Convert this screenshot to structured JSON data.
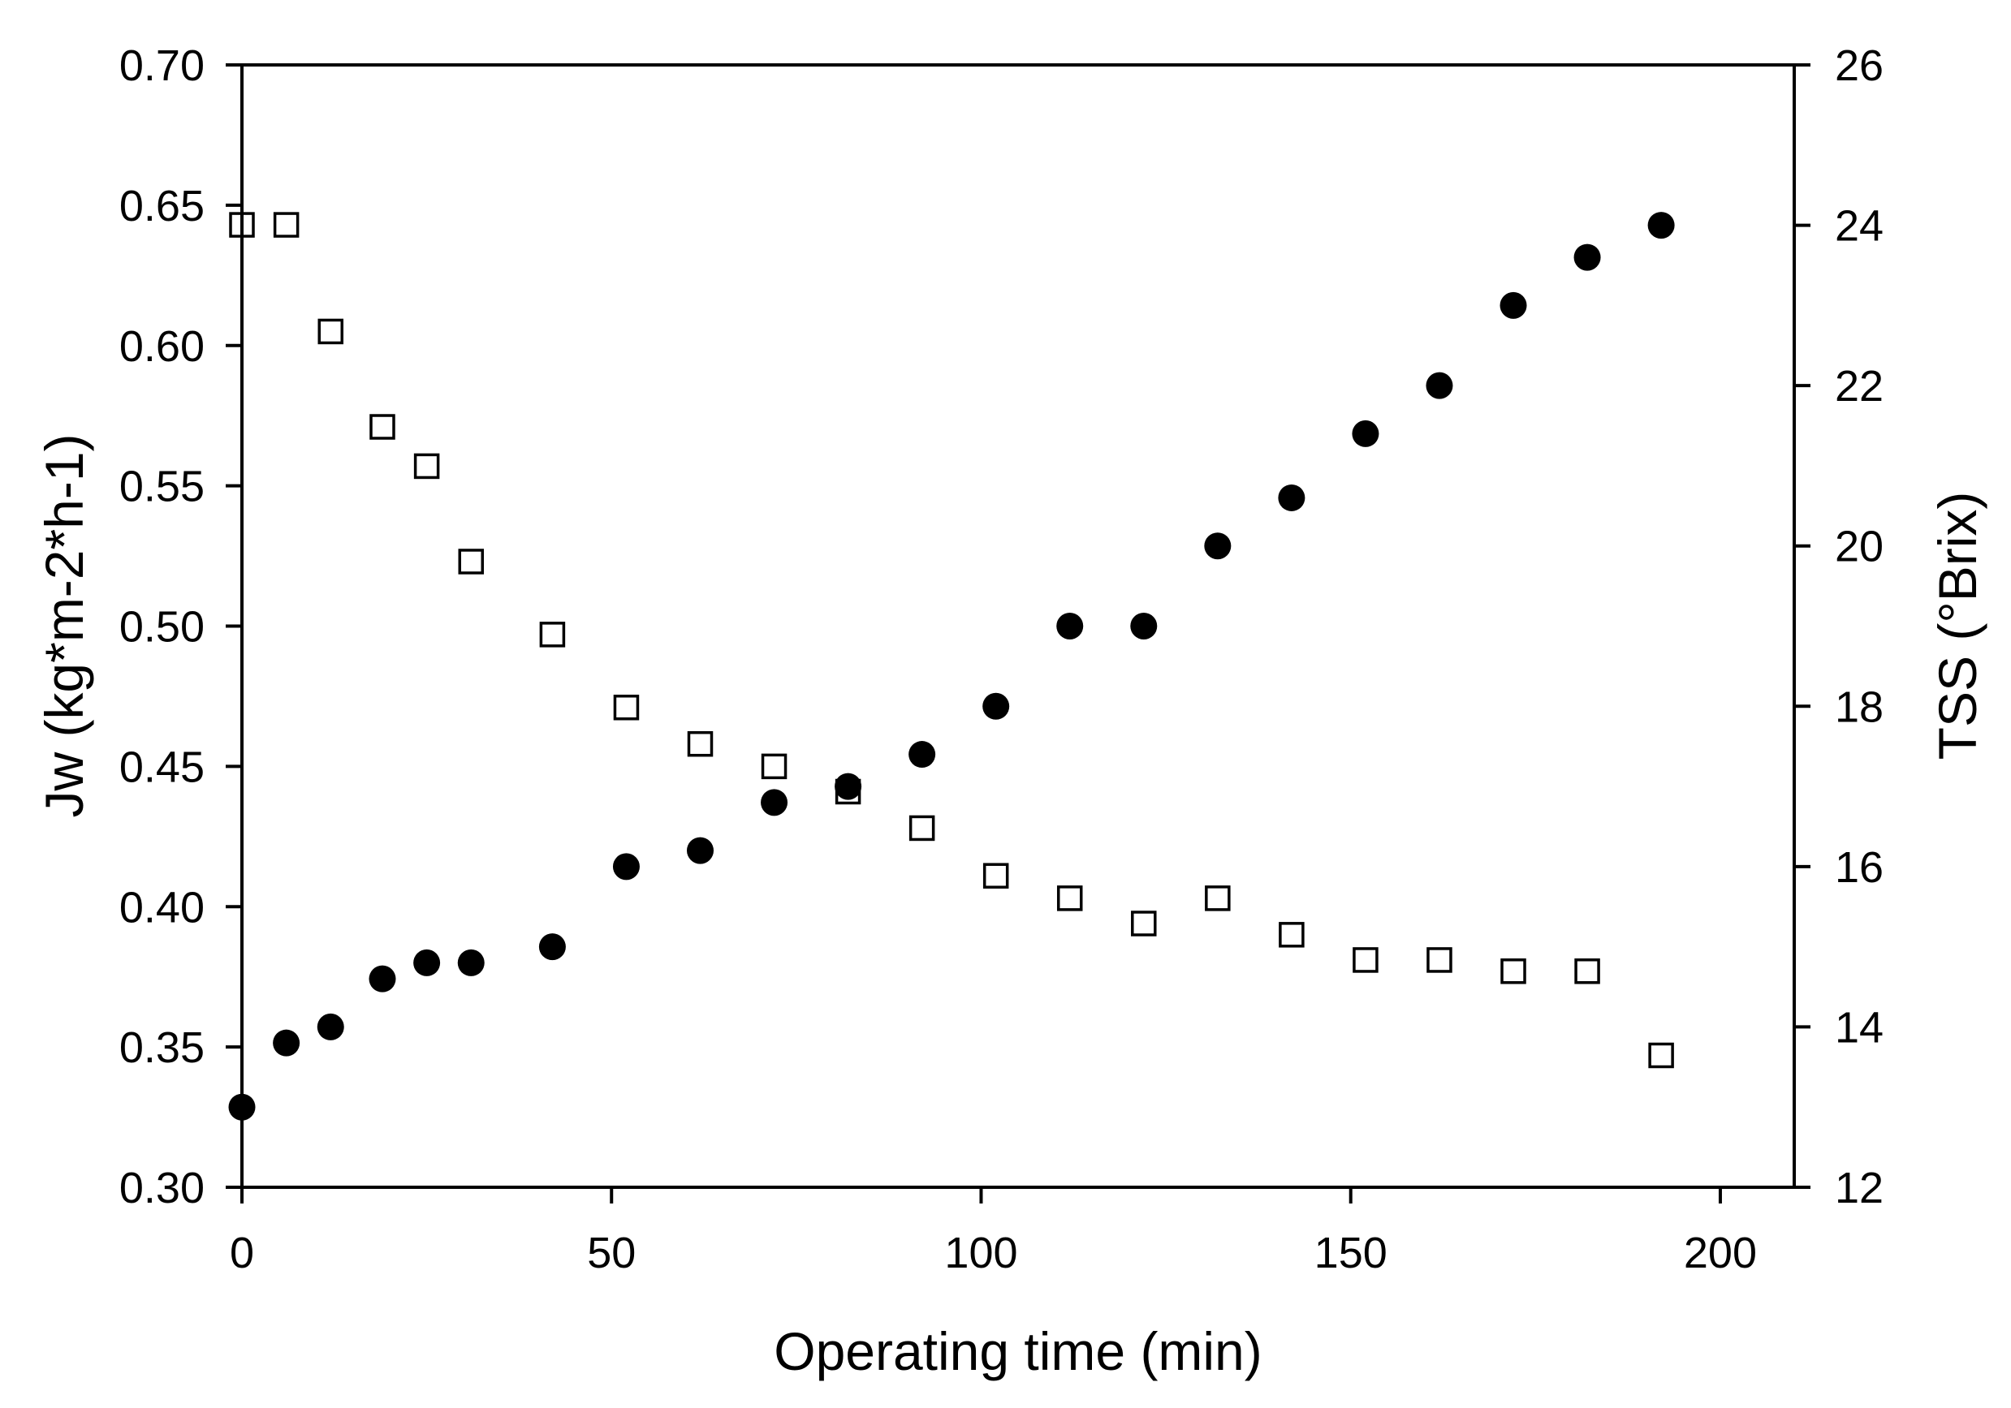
{
  "figure": {
    "background": "#ffffff",
    "ink": "#000000"
  },
  "chart_data": {
    "type": "scatter",
    "title": "",
    "xlabel": "Operating time (min)",
    "ylabel_left": "Jw (kg*m-2*h-1)",
    "ylabel_right": "TSS (°Brix)",
    "grid": false,
    "legend": "none",
    "x_range": [
      0,
      210
    ],
    "y_left_range": [
      0.3,
      0.7
    ],
    "y_right_range": [
      12,
      26
    ],
    "x_ticks": {
      "values": [
        0,
        50,
        100,
        150,
        200
      ],
      "labels": [
        "0",
        "50",
        "100",
        "150",
        "200"
      ]
    },
    "y_left_ticks": {
      "values": [
        0.3,
        0.35,
        0.4,
        0.45,
        0.5,
        0.55,
        0.6,
        0.65,
        0.7
      ],
      "labels": [
        "0.30",
        "0.35",
        "0.40",
        "0.45",
        "0.50",
        "0.55",
        "0.60",
        "0.65",
        "0.70"
      ]
    },
    "y_right_ticks": {
      "values": [
        12,
        14,
        16,
        18,
        20,
        22,
        24,
        26
      ],
      "labels": [
        "12",
        "14",
        "16",
        "18",
        "20",
        "22",
        "24",
        "26"
      ]
    },
    "x": [
      0,
      6,
      12,
      19,
      25,
      31,
      42,
      52,
      62,
      72,
      82,
      92,
      102,
      112,
      122,
      132,
      142,
      152,
      162,
      172,
      182,
      192
    ],
    "series": [
      {
        "name": "Jw",
        "axis": "left",
        "marker": "open-square",
        "color": "#000000",
        "values": [
          0.643,
          0.643,
          0.605,
          0.571,
          0.557,
          0.523,
          0.497,
          0.471,
          0.458,
          0.45,
          0.441,
          0.428,
          0.411,
          0.403,
          0.394,
          0.403,
          0.39,
          0.381,
          0.381,
          0.377,
          0.377,
          0.347
        ]
      },
      {
        "name": "TSS",
        "axis": "right",
        "marker": "filled-circle",
        "color": "#000000",
        "values": [
          13.0,
          13.8,
          14.0,
          14.6,
          14.8,
          14.8,
          15.0,
          16.0,
          16.2,
          16.8,
          17.0,
          17.4,
          18.0,
          19.0,
          19.0,
          20.0,
          20.6,
          21.4,
          22.0,
          23.0,
          23.6,
          24.0
        ]
      }
    ]
  }
}
